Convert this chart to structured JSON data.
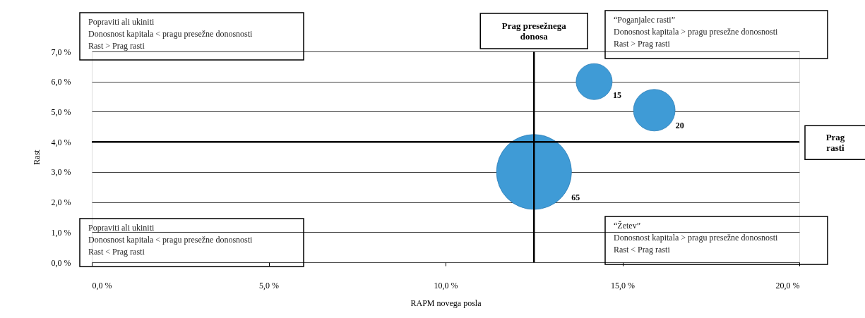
{
  "chart_data": {
    "type": "bubble",
    "xlabel": "RAPM novega posla",
    "ylabel": "Rast",
    "x": [
      14.2,
      15.9,
      12.5
    ],
    "series": [
      {
        "color": "#3f9bd6",
        "values": [
          6.0,
          5.05,
          3.0
        ],
        "sizes": [
          15,
          20,
          65
        ],
        "value_labels": [
          "15",
          "20",
          "65"
        ]
      }
    ],
    "xlim": [
      0,
      20
    ],
    "ylim": [
      0,
      7
    ],
    "xticks": [
      {
        "value": 0,
        "label": "0,0 %"
      },
      {
        "value": 5,
        "label": "5,0 %"
      },
      {
        "value": 10,
        "label": "10,0 %"
      },
      {
        "value": 15,
        "label": "15,0 %"
      },
      {
        "value": 20,
        "label": "20,0 %"
      }
    ],
    "yticks": [
      {
        "value": 0,
        "label": "0,0 %"
      },
      {
        "value": 1,
        "label": "1,0 %"
      },
      {
        "value": 2,
        "label": "2,0 %"
      },
      {
        "value": 3,
        "label": "3,0 %"
      },
      {
        "value": 4,
        "label": "4,0 %"
      },
      {
        "value": 5,
        "label": "5,0 %"
      },
      {
        "value": 6,
        "label": "6,0 %"
      },
      {
        "value": 7,
        "label": "7,0 %"
      }
    ],
    "ref_lines": [
      {
        "axis": "x",
        "value": 12.5,
        "label": "Prag presežnega\ndonosa"
      },
      {
        "axis": "y",
        "value": 4,
        "label": "Prag\nrasti"
      }
    ],
    "annotations": [
      "Popraviti ali ukiniti\nDonosnost kapitala < pragu presežne donosnosti\nRast  > Prag rasti",
      "“Poganjalec rasti”\nDonosnost kapitala > pragu presežne donosnosti\nRast  > Prag rasti",
      "Popraviti ali ukiniti\nDonosnost kapitala < pragu presežne donosnosti\nRast  < Prag rasti",
      "“Žetev”\nDonosnost kapitala > pragu presežne donosnosti\nRast  < Prag rasti"
    ],
    "grid": "y",
    "legend": false
  }
}
